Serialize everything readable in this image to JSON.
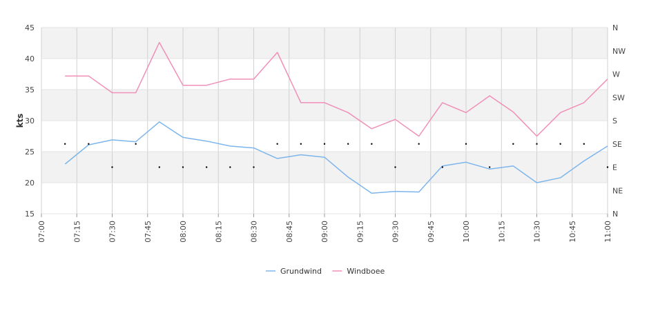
{
  "chart_data": {
    "type": "line",
    "ylabel": "kts",
    "ylim": [
      15,
      45
    ],
    "yticks": [
      15,
      20,
      25,
      30,
      35,
      40,
      45
    ],
    "y2_ticks": [
      "N",
      "NE",
      "E",
      "SE",
      "S",
      "SW",
      "W",
      "NW",
      "N"
    ],
    "x_tick_labels": [
      "07:00",
      "07:15",
      "07:30",
      "07:45",
      "08:00",
      "08:15",
      "08:30",
      "08:45",
      "09:00",
      "09:15",
      "09:30",
      "09:45",
      "10:00",
      "10:15",
      "10:30",
      "10:45",
      "11:00"
    ],
    "x_range_minutes": [
      0,
      240
    ],
    "x": [
      10,
      20,
      30,
      40,
      50,
      60,
      70,
      80,
      90,
      100,
      110,
      120,
      130,
      140,
      150,
      160,
      170,
      180,
      190,
      200,
      210,
      220,
      230,
      240
    ],
    "series": [
      {
        "name": "Grundwind",
        "color": "#7cb5ec",
        "values": [
          23.0,
          26.1,
          26.9,
          26.6,
          29.8,
          27.3,
          26.7,
          25.9,
          25.6,
          23.9,
          24.5,
          24.1,
          20.9,
          18.3,
          18.6,
          18.5,
          22.7,
          23.3,
          22.2,
          22.7,
          20.0,
          20.8,
          23.5,
          25.9
        ]
      },
      {
        "name": "Windboee",
        "color": "#f08fb8",
        "values": [
          37.2,
          37.2,
          34.5,
          34.5,
          42.6,
          35.7,
          35.7,
          36.7,
          36.7,
          41.0,
          32.9,
          32.9,
          31.3,
          28.7,
          30.2,
          27.5,
          32.9,
          31.3,
          34.0,
          31.4,
          27.5,
          31.3,
          32.9,
          36.7
        ]
      }
    ],
    "direction_points": [
      {
        "x": 10,
        "dir": "SE"
      },
      {
        "x": 20,
        "dir": "SE"
      },
      {
        "x": 30,
        "dir": "E"
      },
      {
        "x": 40,
        "dir": "SE"
      },
      {
        "x": 50,
        "dir": "E"
      },
      {
        "x": 60,
        "dir": "E"
      },
      {
        "x": 70,
        "dir": "E"
      },
      {
        "x": 80,
        "dir": "E"
      },
      {
        "x": 90,
        "dir": "E"
      },
      {
        "x": 100,
        "dir": "SE"
      },
      {
        "x": 110,
        "dir": "SE"
      },
      {
        "x": 120,
        "dir": "SE"
      },
      {
        "x": 130,
        "dir": "SE"
      },
      {
        "x": 140,
        "dir": "SE"
      },
      {
        "x": 150,
        "dir": "E"
      },
      {
        "x": 160,
        "dir": "SE"
      },
      {
        "x": 170,
        "dir": "E"
      },
      {
        "x": 180,
        "dir": "SE"
      },
      {
        "x": 190,
        "dir": "E"
      },
      {
        "x": 200,
        "dir": "SE"
      },
      {
        "x": 210,
        "dir": "SE"
      },
      {
        "x": 220,
        "dir": "SE"
      },
      {
        "x": 230,
        "dir": "SE"
      },
      {
        "x": 240,
        "dir": "E"
      }
    ],
    "grid": true,
    "legend_position": "bottom-center"
  }
}
